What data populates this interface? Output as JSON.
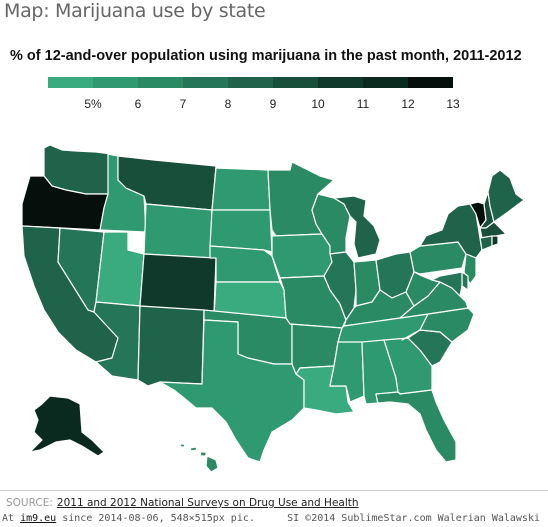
{
  "header": {
    "title": "Map: Marijuana use by state",
    "subtitle": "% of 12-and-over population using marijuana in the past month, 2011-2012"
  },
  "legend": {
    "colors": [
      "#3aab7f",
      "#2f9a71",
      "#2a8a64",
      "#257658",
      "#1e634a",
      "#174f3b",
      "#10392b",
      "#0a2a1f",
      "#050f0b"
    ],
    "labels": [
      "5%",
      "6",
      "7",
      "8",
      "9",
      "10",
      "11",
      "12",
      "13"
    ]
  },
  "map": {
    "states": {
      "WA": 9,
      "OR": 13,
      "CA": 9,
      "NV": 8,
      "ID": 6,
      "MT": 10,
      "WY": 6,
      "UT": 5,
      "AZ": 8,
      "CO": 11,
      "NM": 9,
      "ND": 6,
      "SD": 6,
      "NE": 6,
      "KS": 5,
      "OK": 7,
      "TX": 6,
      "MN": 7,
      "IA": 6,
      "MO": 7,
      "AR": 7,
      "LA": 5,
      "WI": 7,
      "IL": 8,
      "MI": 9,
      "IN": 7,
      "OH": 8,
      "KY": 7,
      "TN": 6,
      "MS": 6,
      "AL": 6,
      "GA": 6,
      "FL": 7,
      "SC": 8,
      "NC": 7,
      "VA": 7,
      "WV": 7,
      "PA": 7,
      "NY": 9,
      "VT": 13,
      "NH": 10,
      "ME": 9,
      "MA": 10,
      "RI": 11,
      "CT": 9,
      "NJ": 7,
      "DE": 8,
      "MD": 8,
      "AK": 12,
      "HI": 7
    }
  },
  "footer": {
    "source_label": "SOURCE:",
    "source_text": "2011 and 2012 National Surveys on Drug Use and Health",
    "at_label": "At",
    "site": "im9.eu",
    "since_text": "since 2014-08-06, 548×515px pic.",
    "credit": "SI ©2014 SublimeStar.com Walerian Walawski"
  }
}
